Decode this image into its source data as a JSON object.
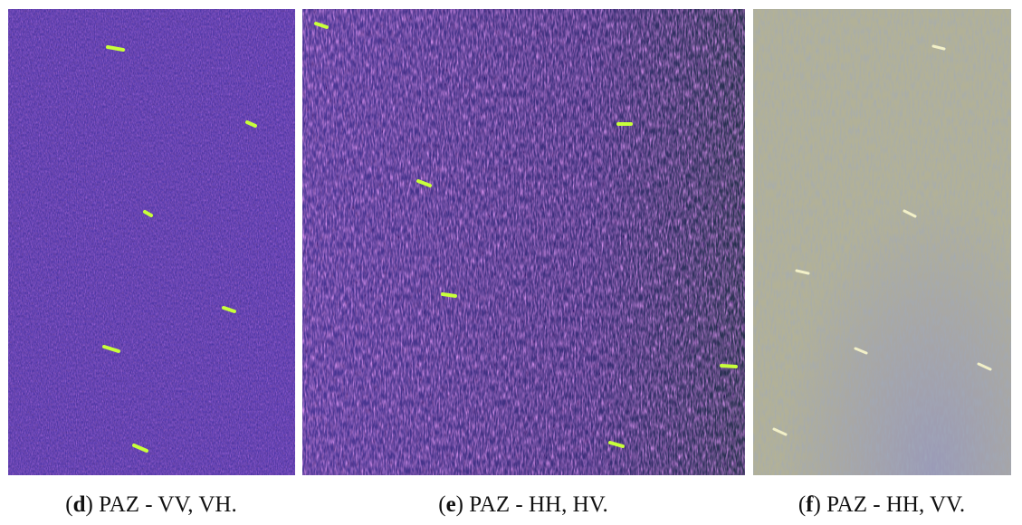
{
  "panels": [
    {
      "caption": {
        "pre": "(",
        "letter": "d",
        "post": ") PAZ - VV, VH."
      }
    },
    {
      "caption": {
        "pre": "(",
        "letter": "e",
        "post": ") PAZ - HH, HV."
      }
    },
    {
      "caption": {
        "pre": "(",
        "letter": "f",
        "post": ") PAZ - HH, VV."
      }
    }
  ]
}
